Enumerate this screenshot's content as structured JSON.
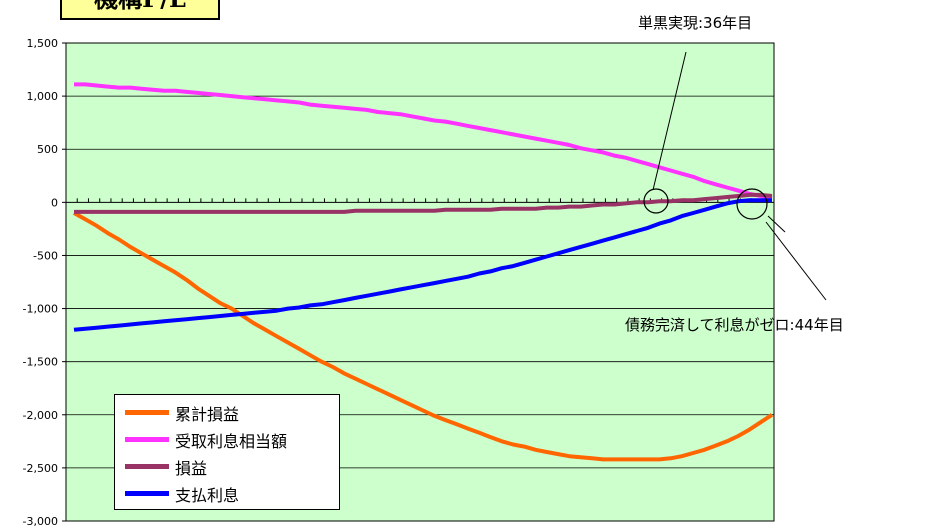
{
  "title": "機構P/L",
  "chart_data": {
    "type": "line",
    "ylim": [
      -3000,
      1500
    ],
    "yticks": [
      1500,
      1000,
      500,
      0,
      -500,
      -1000,
      -1500,
      -2000,
      -2500,
      -3000
    ],
    "ytick_labels": [
      "1,500",
      "1,000",
      "500",
      "0",
      "-500",
      "-1,000",
      "-1,500",
      "-2,000",
      "-2,500",
      "-3,000"
    ],
    "x": [
      1,
      2,
      3,
      4,
      5,
      6,
      7,
      8,
      9,
      10,
      11,
      12,
      13,
      14,
      15,
      16,
      17,
      18,
      19,
      20,
      21,
      22,
      23,
      24,
      25,
      26,
      27,
      28,
      29,
      30,
      31,
      32,
      33,
      34,
      35,
      36,
      37,
      38,
      39,
      40,
      41,
      42,
      43,
      44,
      45,
      46,
      47,
      48,
      49,
      50,
      51,
      52,
      53,
      54,
      55,
      56,
      57,
      58,
      59,
      60,
      61,
      62,
      63
    ],
    "grid": "horizontal",
    "plot_background": "#ccffcc",
    "legend_position": "bottom-left",
    "series": [
      {
        "name": "累計損益",
        "color": "#ff6600",
        "values": [
          -100,
          -160,
          -220,
          -290,
          -350,
          -420,
          -480,
          -540,
          -600,
          -660,
          -730,
          -810,
          -880,
          -950,
          -1000,
          -1070,
          -1140,
          -1200,
          -1260,
          -1320,
          -1380,
          -1440,
          -1500,
          -1550,
          -1610,
          -1660,
          -1710,
          -1760,
          -1810,
          -1860,
          -1910,
          -1960,
          -2010,
          -2050,
          -2090,
          -2130,
          -2170,
          -2210,
          -2250,
          -2280,
          -2300,
          -2330,
          -2350,
          -2370,
          -2390,
          -2400,
          -2410,
          -2420,
          -2420,
          -2420,
          -2420,
          -2420,
          -2420,
          -2410,
          -2390,
          -2360,
          -2330,
          -2290,
          -2250,
          -2200,
          -2140,
          -2070,
          -2000
        ]
      },
      {
        "name": "受取利息相当額",
        "color": "#ff33ff",
        "values": [
          1110,
          1110,
          1100,
          1090,
          1080,
          1080,
          1070,
          1060,
          1050,
          1050,
          1040,
          1030,
          1020,
          1010,
          1000,
          990,
          980,
          970,
          960,
          950,
          940,
          920,
          910,
          900,
          890,
          880,
          870,
          850,
          840,
          830,
          810,
          790,
          770,
          760,
          740,
          720,
          700,
          680,
          660,
          640,
          620,
          600,
          580,
          560,
          540,
          510,
          490,
          470,
          440,
          420,
          390,
          360,
          330,
          300,
          270,
          240,
          200,
          170,
          140,
          110,
          80,
          60,
          40
        ]
      },
      {
        "name": "損益",
        "color": "#993366",
        "values": [
          -90,
          -90,
          -90,
          -90,
          -90,
          -90,
          -90,
          -90,
          -90,
          -90,
          -90,
          -90,
          -90,
          -90,
          -90,
          -90,
          -90,
          -90,
          -90,
          -90,
          -90,
          -90,
          -90,
          -90,
          -90,
          -80,
          -80,
          -80,
          -80,
          -80,
          -80,
          -80,
          -80,
          -70,
          -70,
          -70,
          -70,
          -70,
          -60,
          -60,
          -60,
          -60,
          -50,
          -50,
          -40,
          -40,
          -30,
          -20,
          -20,
          -10,
          0,
          0,
          10,
          10,
          20,
          20,
          30,
          40,
          50,
          60,
          70,
          70,
          60
        ]
      },
      {
        "name": "支払利息",
        "color": "#0000ff",
        "values": [
          -1200,
          -1190,
          -1180,
          -1170,
          -1160,
          -1150,
          -1140,
          -1130,
          -1120,
          -1110,
          -1100,
          -1090,
          -1080,
          -1070,
          -1060,
          -1050,
          -1040,
          -1030,
          -1020,
          -1000,
          -990,
          -970,
          -960,
          -940,
          -920,
          -900,
          -880,
          -860,
          -840,
          -820,
          -800,
          -780,
          -760,
          -740,
          -720,
          -700,
          -670,
          -650,
          -620,
          -600,
          -570,
          -540,
          -510,
          -480,
          -450,
          -420,
          -390,
          -360,
          -330,
          -300,
          -270,
          -240,
          -200,
          -170,
          -130,
          -100,
          -70,
          -40,
          -10,
          10,
          20,
          20,
          20
        ]
      }
    ]
  },
  "annotations": {
    "breakeven": "単黒実現:36年目",
    "debt_zero": "債務完済して利息がゼロ:44年目"
  }
}
